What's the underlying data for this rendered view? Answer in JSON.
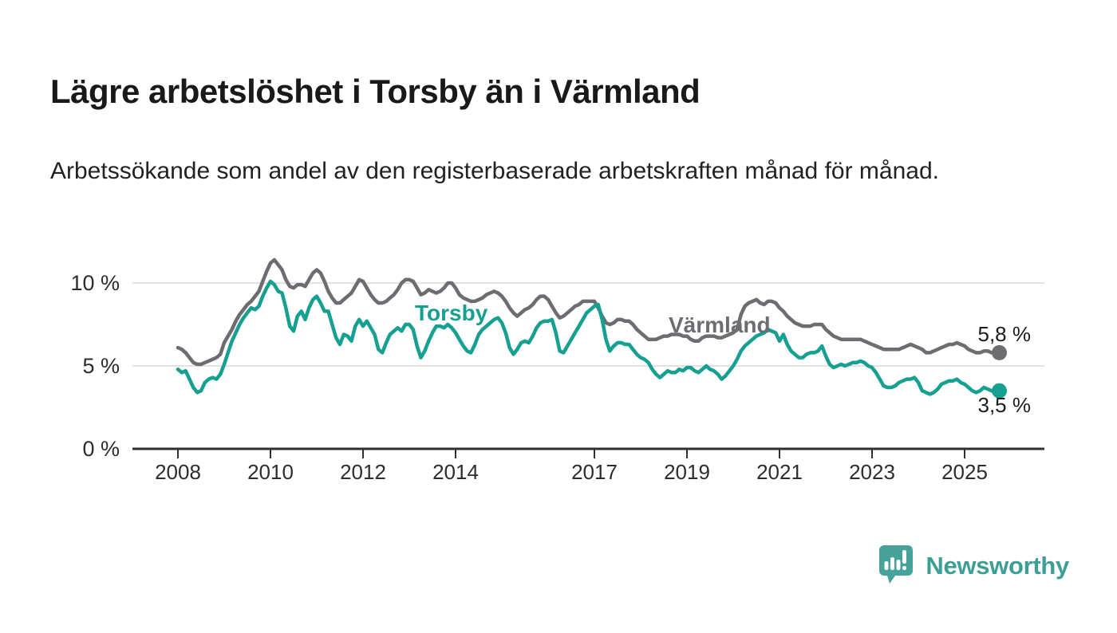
{
  "header": {
    "title": "Lägre arbetslöshet i Torsby än i Värmland",
    "subtitle": "Arbetssökande som andel av den registerbaserade arbetskraften månad för månad."
  },
  "chart_data": {
    "type": "line",
    "unit": "%",
    "frequency": "monthly",
    "x_start_year": 2008,
    "x_start_month": 1,
    "x_end_year": 2025,
    "x_end_month": 10,
    "x_ticks": [
      2008,
      2010,
      2012,
      2014,
      2017,
      2019,
      2021,
      2023,
      2025
    ],
    "y_ticks": [
      {
        "value": 0,
        "label": "0 %"
      },
      {
        "value": 5,
        "label": "5 %"
      },
      {
        "value": 10,
        "label": "10 %"
      }
    ],
    "y_gridlines": [
      5,
      10
    ],
    "ylim": [
      0,
      11.8
    ],
    "grid": true,
    "legend_position": "inline-labels",
    "series": [
      {
        "name": "Värmland",
        "color": "#6c6d71",
        "end_value_label": "5,8 %",
        "values": [
          6.1,
          6.0,
          5.8,
          5.5,
          5.2,
          5.1,
          5.1,
          5.2,
          5.3,
          5.4,
          5.5,
          5.7,
          6.4,
          6.8,
          7.2,
          7.7,
          8.1,
          8.4,
          8.7,
          8.9,
          9.2,
          9.5,
          10.1,
          10.7,
          11.2,
          11.4,
          11.1,
          10.8,
          10.2,
          9.8,
          9.7,
          9.9,
          9.9,
          9.8,
          10.2,
          10.6,
          10.8,
          10.6,
          10.1,
          9.5,
          9.1,
          8.8,
          8.8,
          9.0,
          9.2,
          9.4,
          9.8,
          10.2,
          10.1,
          9.7,
          9.3,
          9.0,
          8.8,
          8.8,
          8.9,
          9.1,
          9.3,
          9.6,
          10.0,
          10.2,
          10.2,
          10.1,
          9.7,
          9.3,
          9.4,
          9.6,
          9.5,
          9.4,
          9.5,
          9.7,
          10.0,
          10.0,
          9.7,
          9.3,
          9.1,
          9.0,
          8.9,
          8.9,
          9.0,
          9.1,
          9.3,
          9.4,
          9.5,
          9.4,
          9.2,
          8.9,
          8.5,
          8.2,
          8.0,
          8.2,
          8.4,
          8.5,
          8.7,
          9.0,
          9.2,
          9.2,
          9.0,
          8.6,
          8.2,
          7.9,
          8.0,
          8.2,
          8.4,
          8.6,
          8.7,
          8.9,
          8.9,
          8.9,
          8.9,
          8.5,
          8.0,
          7.6,
          7.5,
          7.6,
          7.8,
          7.8,
          7.7,
          7.7,
          7.5,
          7.2,
          7.0,
          6.8,
          6.6,
          6.6,
          6.6,
          6.7,
          6.8,
          6.8,
          6.9,
          6.9,
          6.9,
          6.8,
          6.8,
          6.6,
          6.5,
          6.5,
          6.7,
          6.8,
          6.8,
          6.8,
          6.7,
          6.7,
          6.8,
          6.9,
          7.0,
          7.2,
          8.1,
          8.6,
          8.8,
          8.9,
          9.0,
          8.8,
          8.7,
          8.9,
          8.9,
          8.8,
          8.5,
          8.3,
          8.0,
          7.8,
          7.6,
          7.5,
          7.4,
          7.4,
          7.4,
          7.5,
          7.5,
          7.5,
          7.2,
          7.0,
          6.8,
          6.7,
          6.6,
          6.6,
          6.6,
          6.6,
          6.6,
          6.6,
          6.5,
          6.4,
          6.3,
          6.2,
          6.1,
          6.0,
          6.0,
          6.0,
          6.0,
          6.0,
          6.1,
          6.2,
          6.3,
          6.2,
          6.1,
          6.0,
          5.8,
          5.8,
          5.9,
          6.0,
          6.1,
          6.2,
          6.3,
          6.3,
          6.4,
          6.3,
          6.2,
          6.0,
          5.9,
          5.8,
          5.8,
          5.9,
          5.9,
          5.8,
          5.8,
          5.8
        ]
      },
      {
        "name": "Torsby",
        "color": "#16a091",
        "end_value_label": "3,5 %",
        "values": [
          4.8,
          4.6,
          4.7,
          4.2,
          3.7,
          3.4,
          3.5,
          4.0,
          4.2,
          4.3,
          4.2,
          4.5,
          5.1,
          5.8,
          6.5,
          7.0,
          7.5,
          7.9,
          8.2,
          8.5,
          8.4,
          8.6,
          9.2,
          9.7,
          10.1,
          9.9,
          9.5,
          9.4,
          8.5,
          7.4,
          7.1,
          8.0,
          8.3,
          7.8,
          8.5,
          9.0,
          9.2,
          8.8,
          8.3,
          8.3,
          7.5,
          6.7,
          6.3,
          6.9,
          6.8,
          6.5,
          7.4,
          7.8,
          7.4,
          7.7,
          7.3,
          6.9,
          6.0,
          5.8,
          6.4,
          6.9,
          7.1,
          7.3,
          7.1,
          7.5,
          7.5,
          7.2,
          6.2,
          5.5,
          5.9,
          6.5,
          7.0,
          7.4,
          7.4,
          7.3,
          7.5,
          7.3,
          7.0,
          6.6,
          6.2,
          5.9,
          5.8,
          6.3,
          6.9,
          7.2,
          7.4,
          7.6,
          7.8,
          7.9,
          7.6,
          7.0,
          6.1,
          5.7,
          6.0,
          6.4,
          6.5,
          6.4,
          6.8,
          7.3,
          7.6,
          7.7,
          7.7,
          7.8,
          7.0,
          5.9,
          5.8,
          6.2,
          6.6,
          7.0,
          7.4,
          7.8,
          8.2,
          8.4,
          8.6,
          8.7,
          7.8,
          6.6,
          5.9,
          6.2,
          6.4,
          6.4,
          6.3,
          6.3,
          6.0,
          5.7,
          5.5,
          5.4,
          5.2,
          4.8,
          4.5,
          4.3,
          4.5,
          4.7,
          4.6,
          4.6,
          4.8,
          4.7,
          4.9,
          4.9,
          4.7,
          4.6,
          4.8,
          5.0,
          4.8,
          4.7,
          4.5,
          4.2,
          4.4,
          4.7,
          5.0,
          5.4,
          5.9,
          6.2,
          6.4,
          6.6,
          6.8,
          6.9,
          7.0,
          7.2,
          7.1,
          7.0,
          6.5,
          6.9,
          6.3,
          5.9,
          5.7,
          5.5,
          5.5,
          5.7,
          5.8,
          5.8,
          5.9,
          6.2,
          5.6,
          5.1,
          4.9,
          5.0,
          5.1,
          5.0,
          5.1,
          5.2,
          5.2,
          5.3,
          5.2,
          5.0,
          4.9,
          4.6,
          4.2,
          3.8,
          3.7,
          3.7,
          3.8,
          4.0,
          4.1,
          4.2,
          4.2,
          4.3,
          4.0,
          3.5,
          3.4,
          3.3,
          3.4,
          3.6,
          3.9,
          4.0,
          4.1,
          4.1,
          4.2,
          4.0,
          3.9,
          3.7,
          3.5,
          3.4,
          3.5,
          3.7,
          3.6,
          3.5,
          3.4,
          3.5
        ]
      }
    ],
    "annotations": {
      "varmland_label": "Värmland",
      "torsby_label": "Torsby",
      "varmland_end_label": "5,8 %",
      "torsby_end_label": "3,5 %"
    },
    "axis_color": "#2f2f2f",
    "gridline_color": "#d9d9d9"
  },
  "footer": {
    "logo_text": "Newsworthy",
    "logo_text_color": "#3d9e95",
    "logo_icon_color": "#47a29a"
  }
}
